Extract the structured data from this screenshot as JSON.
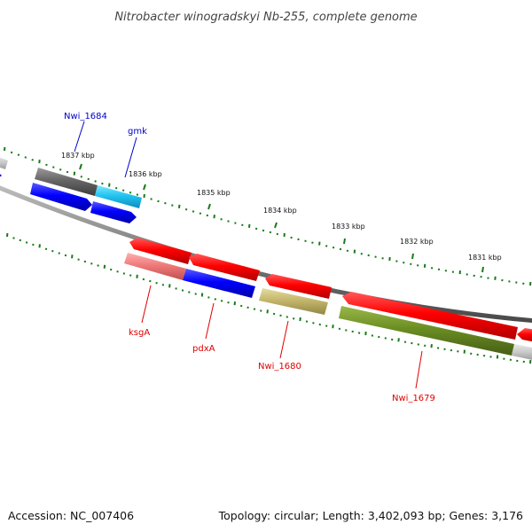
{
  "title": "Nitrobacter winogradskyi Nb-255, complete genome",
  "footer": {
    "accession": "Accession: NC_007406",
    "summary": "Topology: circular; Length: 3,402,093 bp; Genes: 3,176"
  },
  "ticks": [
    "1837 kbp",
    "1836 kbp",
    "1835 kbp",
    "1834 kbp",
    "1833 kbp",
    "1832 kbp",
    "1831 kbp"
  ],
  "gene_labels": {
    "nwi_1684": "Nwi_1684",
    "gmk": "gmk",
    "ksgA": "ksgA",
    "pdxA": "pdxA",
    "nwi_1680": "Nwi_1680",
    "nwi_1679": "Nwi_1679"
  },
  "colors": {
    "backbone": "#808080",
    "tick": "#1a7a1a",
    "forward_cds": "#0000ee",
    "reverse_cds": "#ee0000",
    "label_forward": "#0000cc",
    "label_reverse": "#e00000"
  }
}
